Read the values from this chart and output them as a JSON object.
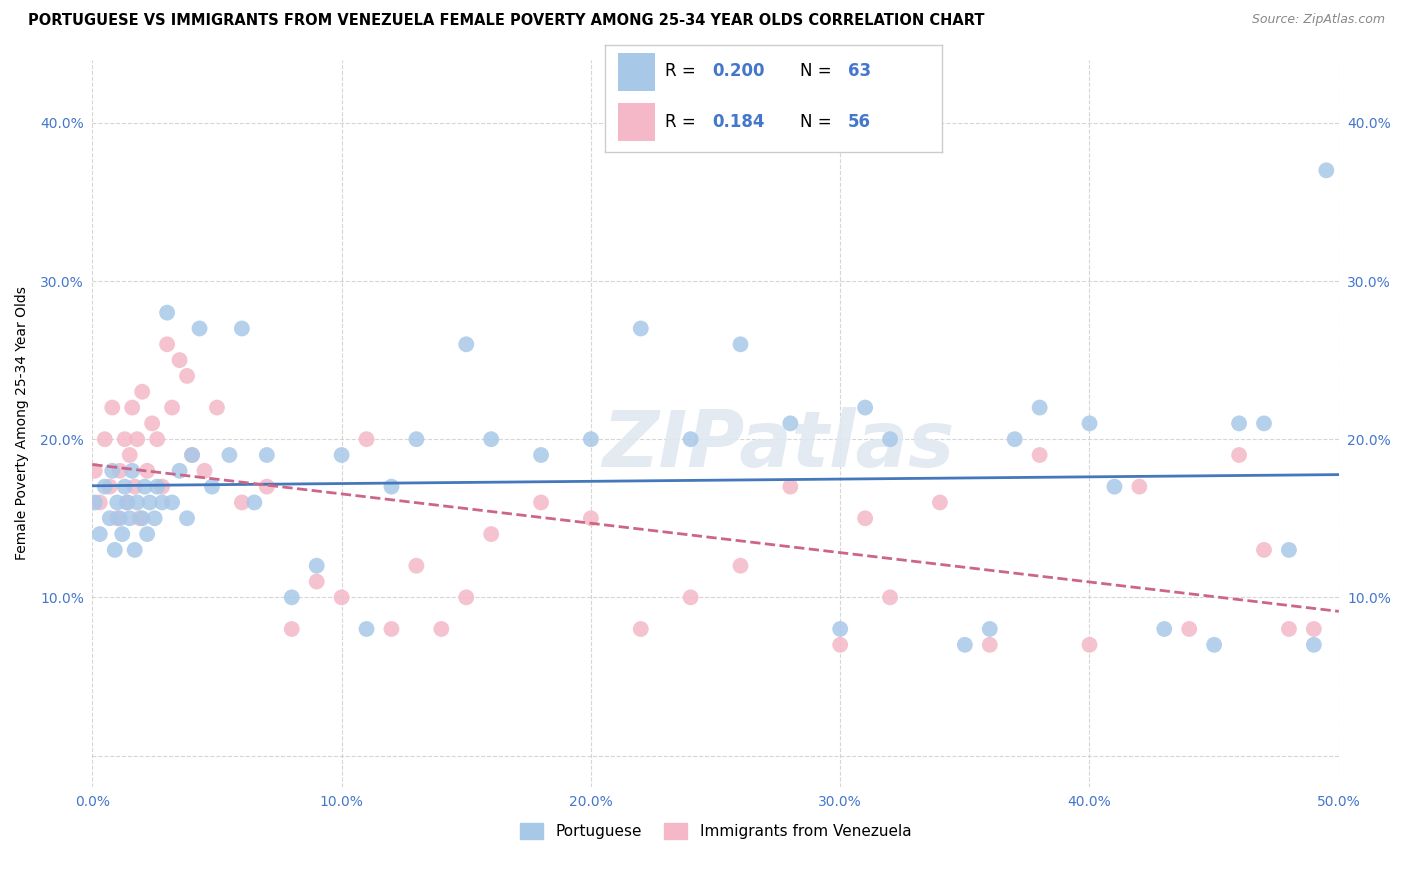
{
  "title": "PORTUGUESE VS IMMIGRANTS FROM VENEZUELA FEMALE POVERTY AMONG 25-34 YEAR OLDS CORRELATION CHART",
  "source": "Source: ZipAtlas.com",
  "ylabel": "Female Poverty Among 25-34 Year Olds",
  "xlim": [
    0.0,
    0.5
  ],
  "ylim": [
    -0.02,
    0.44
  ],
  "xticks": [
    0.0,
    0.1,
    0.2,
    0.3,
    0.4,
    0.5
  ],
  "yticks": [
    0.0,
    0.1,
    0.2,
    0.3,
    0.4
  ],
  "xtick_labels": [
    "0.0%",
    "10.0%",
    "20.0%",
    "30.0%",
    "40.0%",
    "50.0%"
  ],
  "ytick_labels": [
    "",
    "10.0%",
    "20.0%",
    "30.0%",
    "40.0%"
  ],
  "blue_fill": "#a8c8e8",
  "pink_fill": "#f4b8c8",
  "blue_line_color": "#4477bb",
  "pink_line_color": "#cc6688",
  "legend_R_blue": "0.200",
  "legend_N_blue": "63",
  "legend_R_pink": "0.184",
  "legend_N_pink": "56",
  "legend_label_blue": "Portuguese",
  "legend_label_pink": "Immigrants from Venezuela",
  "watermark": "ZIPatlas",
  "background_color": "#ffffff",
  "grid_color": "#cccccc",
  "tick_color": "#4477cc",
  "blue_scatter_x": [
    0.001,
    0.003,
    0.005,
    0.007,
    0.008,
    0.009,
    0.01,
    0.011,
    0.012,
    0.013,
    0.014,
    0.015,
    0.016,
    0.017,
    0.018,
    0.02,
    0.021,
    0.022,
    0.023,
    0.025,
    0.026,
    0.028,
    0.03,
    0.032,
    0.035,
    0.038,
    0.04,
    0.043,
    0.048,
    0.055,
    0.06,
    0.065,
    0.07,
    0.08,
    0.09,
    0.1,
    0.11,
    0.12,
    0.13,
    0.15,
    0.16,
    0.18,
    0.2,
    0.22,
    0.24,
    0.26,
    0.28,
    0.3,
    0.31,
    0.32,
    0.35,
    0.36,
    0.37,
    0.38,
    0.4,
    0.41,
    0.43,
    0.45,
    0.46,
    0.47,
    0.48,
    0.49,
    0.495
  ],
  "blue_scatter_y": [
    0.16,
    0.14,
    0.17,
    0.15,
    0.18,
    0.13,
    0.16,
    0.15,
    0.14,
    0.17,
    0.16,
    0.15,
    0.18,
    0.13,
    0.16,
    0.15,
    0.17,
    0.14,
    0.16,
    0.15,
    0.17,
    0.16,
    0.28,
    0.16,
    0.18,
    0.15,
    0.19,
    0.27,
    0.17,
    0.19,
    0.27,
    0.16,
    0.19,
    0.1,
    0.12,
    0.19,
    0.08,
    0.17,
    0.2,
    0.26,
    0.2,
    0.19,
    0.2,
    0.27,
    0.2,
    0.26,
    0.21,
    0.08,
    0.22,
    0.2,
    0.07,
    0.08,
    0.2,
    0.22,
    0.21,
    0.17,
    0.08,
    0.07,
    0.21,
    0.21,
    0.13,
    0.07,
    0.37
  ],
  "pink_scatter_x": [
    0.001,
    0.003,
    0.005,
    0.007,
    0.008,
    0.01,
    0.011,
    0.013,
    0.014,
    0.015,
    0.016,
    0.017,
    0.018,
    0.019,
    0.02,
    0.022,
    0.024,
    0.026,
    0.028,
    0.03,
    0.032,
    0.035,
    0.038,
    0.04,
    0.045,
    0.05,
    0.06,
    0.07,
    0.08,
    0.09,
    0.1,
    0.11,
    0.12,
    0.13,
    0.14,
    0.15,
    0.16,
    0.18,
    0.2,
    0.22,
    0.24,
    0.26,
    0.28,
    0.3,
    0.31,
    0.32,
    0.34,
    0.36,
    0.38,
    0.4,
    0.42,
    0.44,
    0.46,
    0.47,
    0.48,
    0.49
  ],
  "pink_scatter_y": [
    0.18,
    0.16,
    0.2,
    0.17,
    0.22,
    0.15,
    0.18,
    0.2,
    0.16,
    0.19,
    0.22,
    0.17,
    0.2,
    0.15,
    0.23,
    0.18,
    0.21,
    0.2,
    0.17,
    0.26,
    0.22,
    0.25,
    0.24,
    0.19,
    0.18,
    0.22,
    0.16,
    0.17,
    0.08,
    0.11,
    0.1,
    0.2,
    0.08,
    0.12,
    0.08,
    0.1,
    0.14,
    0.16,
    0.15,
    0.08,
    0.1,
    0.12,
    0.17,
    0.07,
    0.15,
    0.1,
    0.16,
    0.07,
    0.19,
    0.07,
    0.17,
    0.08,
    0.19,
    0.13,
    0.08,
    0.08
  ]
}
